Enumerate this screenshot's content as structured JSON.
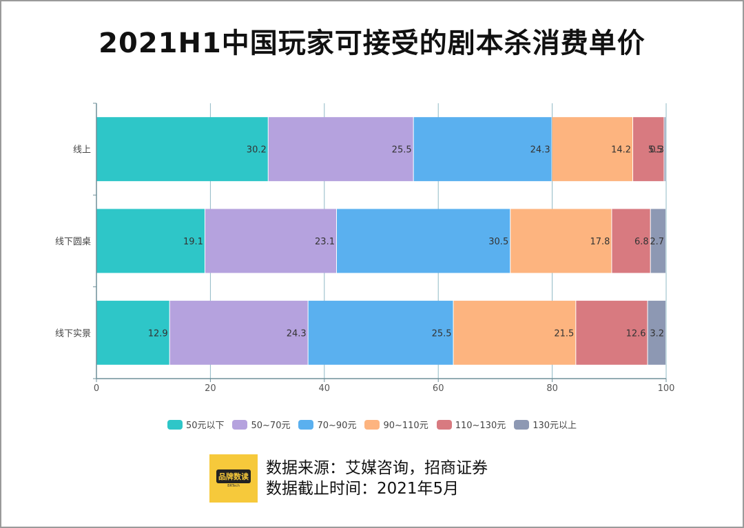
{
  "title": "2021H1中国玩家可接受的剧本杀消费单价",
  "chart_data": {
    "type": "bar",
    "orientation": "horizontal",
    "stacked": true,
    "categories": [
      "线上",
      "线下圆桌",
      "线下实景"
    ],
    "series": [
      {
        "name": "50元以下",
        "color": "#2ec6c8",
        "values": [
          30.2,
          19.1,
          12.9
        ]
      },
      {
        "name": "50~70元",
        "color": "#b5a2de",
        "values": [
          25.5,
          23.1,
          24.3
        ]
      },
      {
        "name": "70~90元",
        "color": "#5ab0ef",
        "values": [
          24.3,
          30.5,
          25.5
        ]
      },
      {
        "name": "90~110元",
        "color": "#fdb47f",
        "values": [
          14.2,
          17.8,
          21.5
        ]
      },
      {
        "name": "110~130元",
        "color": "#d87a80",
        "values": [
          5.5,
          6.8,
          12.6
        ]
      },
      {
        "name": "130元以上",
        "color": "#8d98b3",
        "values": [
          0.3,
          2.7,
          3.2
        ]
      }
    ],
    "value_labels": [
      [
        "30.2",
        "25.5",
        "24.3",
        "14.2",
        "5.5",
        "0.3"
      ],
      [
        "19.1",
        "23.1",
        "30.5",
        "17.8",
        "6.8",
        "2.7"
      ],
      [
        "12.9",
        "24.3",
        "25.5",
        "21.5",
        "12.6",
        "3.2"
      ]
    ],
    "xlim": [
      0,
      100
    ],
    "xticks": [
      0,
      20,
      40,
      60,
      80,
      100
    ],
    "grid": true,
    "legend_position": "bottom"
  },
  "source": {
    "line1": "数据来源：艾媒咨询，招商证券",
    "line2": "数据截止时间：2021年5月",
    "logo_text": "品牌数读",
    "logo_sub": "BRTech"
  }
}
